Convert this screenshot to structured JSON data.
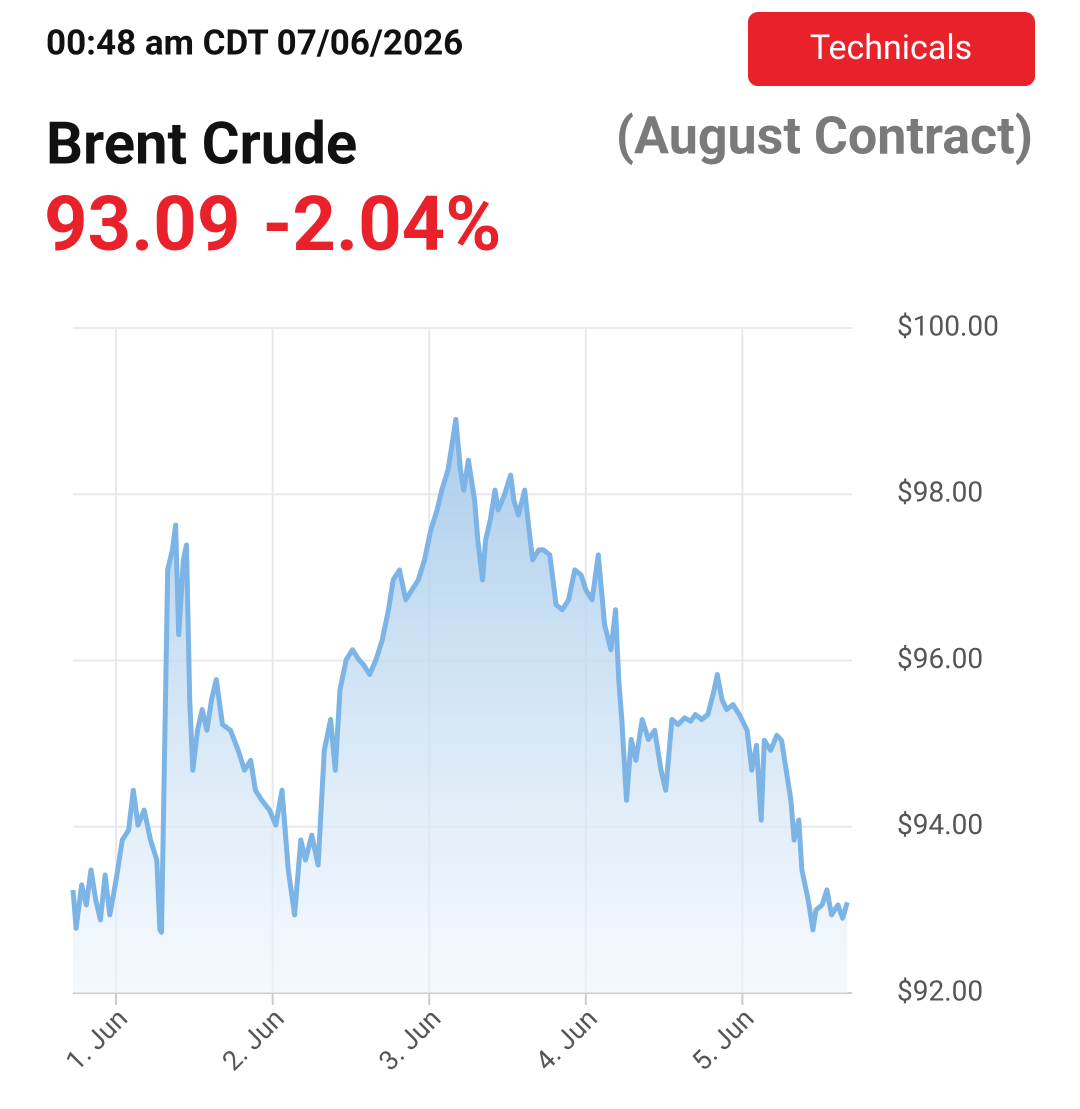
{
  "header": {
    "timestamp": "00:48 am CDT 07/06/2026",
    "button": "Technicals",
    "name": "Brent Crude",
    "contract": "(August Contract)",
    "price": "93.09",
    "change": "-2.04%"
  },
  "chart_data": {
    "type": "area",
    "color": "#7db4e6",
    "grid": true,
    "x": [
      0.725,
      0.745,
      0.78,
      0.81,
      0.84,
      0.87,
      0.9,
      0.93,
      0.96,
      1.0,
      1.04,
      1.08,
      1.11,
      1.14,
      1.18,
      1.22,
      1.26,
      1.28,
      1.29,
      1.33,
      1.36,
      1.38,
      1.4,
      1.43,
      1.45,
      1.47,
      1.49,
      1.52,
      1.55,
      1.58,
      1.61,
      1.64,
      1.68,
      1.73,
      1.78,
      1.82,
      1.86,
      1.89,
      1.93,
      1.98,
      2.02,
      2.06,
      2.1,
      2.14,
      2.18,
      2.21,
      2.25,
      2.29,
      2.33,
      2.37,
      2.4,
      2.43,
      2.47,
      2.51,
      2.55,
      2.58,
      2.62,
      2.66,
      2.7,
      2.74,
      2.77,
      2.81,
      2.85,
      2.89,
      2.93,
      2.97,
      3.01,
      3.05,
      3.08,
      3.12,
      3.15,
      3.17,
      3.2,
      3.22,
      3.25,
      3.29,
      3.31,
      3.34,
      3.36,
      3.39,
      3.42,
      3.44,
      3.48,
      3.52,
      3.54,
      3.57,
      3.61,
      3.63,
      3.66,
      3.7,
      3.73,
      3.77,
      3.81,
      3.85,
      3.89,
      3.93,
      3.97,
      4.0,
      4.04,
      4.08,
      4.12,
      4.16,
      4.19,
      4.21,
      4.23,
      4.26,
      4.29,
      4.32,
      4.36,
      4.4,
      4.44,
      4.48,
      4.51,
      4.55,
      4.59,
      4.63,
      4.67,
      4.7,
      4.74,
      4.78,
      4.82,
      4.84,
      4.87,
      4.9,
      4.94,
      4.98,
      5.03,
      5.06,
      5.09,
      5.12,
      5.14,
      5.18,
      5.22,
      5.25,
      5.28,
      5.31,
      5.33,
      5.36,
      5.38,
      5.42,
      5.45,
      5.47,
      5.51,
      5.54,
      5.57,
      5.61,
      5.64,
      5.67
    ],
    "values": [
      93.24,
      92.78,
      93.3,
      93.06,
      93.48,
      93.12,
      92.88,
      93.42,
      92.94,
      93.36,
      93.84,
      93.96,
      94.44,
      94.02,
      94.2,
      93.84,
      93.6,
      92.76,
      92.73,
      97.09,
      97.33,
      97.63,
      96.31,
      97.21,
      97.39,
      95.53,
      94.68,
      95.16,
      95.41,
      95.16,
      95.53,
      95.77,
      95.23,
      95.16,
      94.92,
      94.68,
      94.8,
      94.44,
      94.32,
      94.2,
      94.02,
      94.44,
      93.48,
      92.94,
      93.84,
      93.6,
      93.9,
      93.54,
      94.92,
      95.29,
      94.68,
      95.65,
      96.01,
      96.13,
      96.01,
      95.95,
      95.83,
      96.01,
      96.25,
      96.61,
      96.97,
      97.09,
      96.73,
      96.85,
      96.97,
      97.21,
      97.57,
      97.81,
      98.05,
      98.29,
      98.65,
      98.9,
      98.29,
      98.05,
      98.41,
      97.93,
      97.45,
      96.97,
      97.45,
      97.69,
      98.05,
      97.81,
      97.99,
      98.23,
      97.93,
      97.75,
      98.05,
      97.69,
      97.21,
      97.33,
      97.33,
      97.27,
      96.67,
      96.61,
      96.73,
      97.09,
      97.03,
      96.85,
      96.73,
      97.27,
      96.43,
      96.13,
      96.61,
      95.77,
      95.29,
      94.32,
      95.05,
      94.8,
      95.29,
      95.05,
      95.16,
      94.68,
      94.44,
      95.29,
      95.23,
      95.31,
      95.27,
      95.35,
      95.29,
      95.35,
      95.65,
      95.83,
      95.53,
      95.41,
      95.47,
      95.35,
      95.16,
      94.68,
      94.98,
      94.08,
      95.04,
      94.92,
      95.1,
      95.04,
      94.68,
      94.32,
      93.84,
      94.08,
      93.48,
      93.12,
      92.76,
      93.0,
      93.06,
      93.24,
      92.94,
      93.06,
      92.9,
      93.09
    ],
    "xlim": [
      0.725,
      5.7
    ],
    "xticks": [
      {
        "value": 1,
        "label": "1. Jun"
      },
      {
        "value": 2,
        "label": "2. Jun"
      },
      {
        "value": 3,
        "label": "3. Jun"
      },
      {
        "value": 4,
        "label": "4. Jun"
      },
      {
        "value": 5,
        "label": "5. Jun"
      }
    ],
    "ylim": [
      92,
      100
    ],
    "yticks": [
      {
        "value": 92,
        "label": "$92.00"
      },
      {
        "value": 94,
        "label": "$94.00"
      },
      {
        "value": 96,
        "label": "$96.00"
      },
      {
        "value": 98,
        "label": "$98.00"
      },
      {
        "value": 100,
        "label": "$100.00"
      }
    ]
  }
}
